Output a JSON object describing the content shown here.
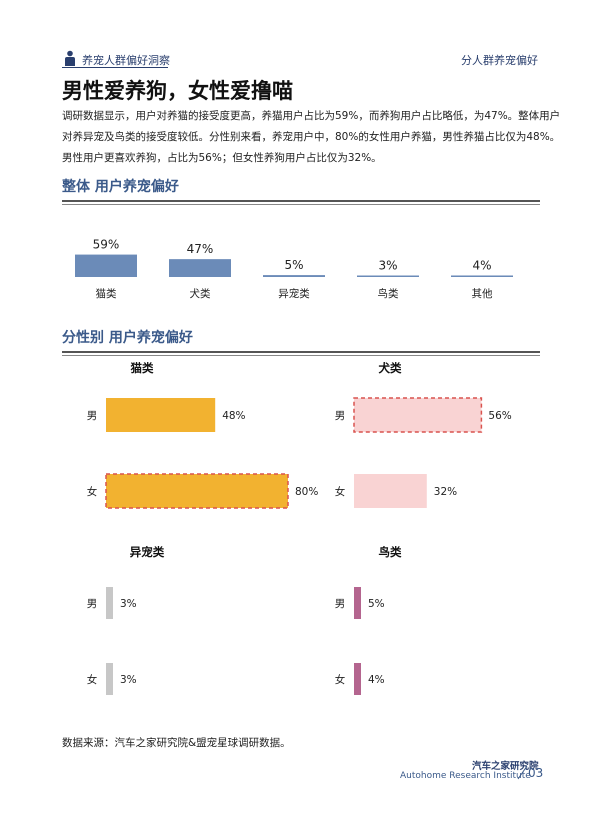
{
  "header": {
    "left_label": "养宠人群偏好洞察",
    "right_label": "分人群养宠偏好"
  },
  "page_title": "男性爱养狗，女性爱撸喵",
  "intro_lines": [
    "调研数据显示，用户对养猫的接受度更高，养猫用户占比为59%，而养狗用户占比略低，为47%。整体用户",
    "对养异宠及鸟类的接受度较低。分性别来看，养宠用户中，80%的女性用户养猫，男性养猫占比仅为48%。",
    "男性用户更喜欢养狗，占比为56%；但女性养狗用户占比仅为32%。"
  ],
  "section1_title": "整体  用户养宠偏好",
  "section2_title": "分性别  用户养宠偏好",
  "source": "数据来源：汽车之家研究院&盟宠星球调研数据。",
  "footer": {
    "institute_cn": "汽车之家研究院",
    "institute_en": "Autohome Research Institute",
    "page_number": "03"
  },
  "colors": {
    "overall": "#6b8bb8",
    "cat": "#f2b230",
    "dog": "#f9d3d3",
    "dog_border": "#d9534f",
    "exotic": "#c7c7c7",
    "bird": "#b4658f",
    "accent": "#3b5a8a"
  },
  "chart_data": [
    {
      "type": "bar",
      "title": "整体  用户养宠偏好",
      "categories": [
        "猫类",
        "犬类",
        "异宠类",
        "鸟类",
        "其他"
      ],
      "values": [
        59,
        47,
        5,
        3,
        4
      ],
      "value_labels": [
        "59%",
        "47%",
        "5%",
        "3%",
        "4%"
      ],
      "unit": "%",
      "ylim": [
        0,
        100
      ]
    },
    {
      "type": "bar",
      "title": "猫类",
      "orientation": "horizontal",
      "categories": [
        "男",
        "女"
      ],
      "values": [
        48,
        80
      ],
      "value_labels": [
        "48%",
        "80%"
      ],
      "highlight": "女",
      "xlim": [
        0,
        100
      ]
    },
    {
      "type": "bar",
      "title": "犬类",
      "orientation": "horizontal",
      "categories": [
        "男",
        "女"
      ],
      "values": [
        56,
        32
      ],
      "value_labels": [
        "56%",
        "32%"
      ],
      "highlight": "男",
      "xlim": [
        0,
        100
      ]
    },
    {
      "type": "bar",
      "title": "异宠类",
      "orientation": "horizontal",
      "categories": [
        "男",
        "女"
      ],
      "values": [
        3,
        3
      ],
      "value_labels": [
        "3%",
        "3%"
      ],
      "xlim": [
        0,
        100
      ]
    },
    {
      "type": "bar",
      "title": "鸟类",
      "orientation": "horizontal",
      "categories": [
        "男",
        "女"
      ],
      "values": [
        5,
        4
      ],
      "value_labels": [
        "5%",
        "4%"
      ],
      "xlim": [
        0,
        100
      ]
    }
  ]
}
